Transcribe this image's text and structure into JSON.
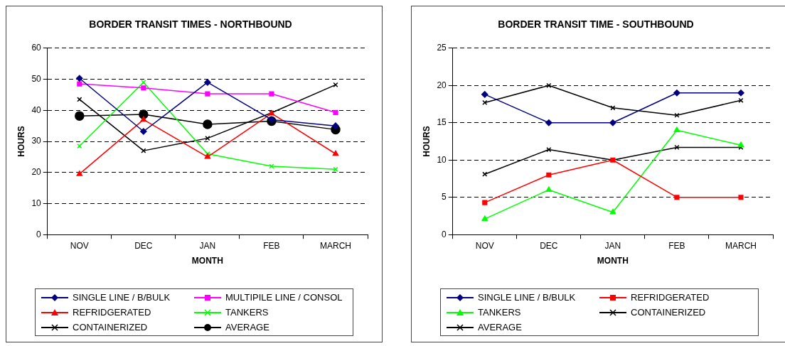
{
  "chart_data": [
    {
      "type": "line",
      "title": "BORDER TRANSIT TIMES - NORTHBOUND",
      "xlabel": "MONTH",
      "ylabel": "HOURS",
      "categories": [
        "NOV",
        "DEC",
        "JAN",
        "FEB",
        "MARCH"
      ],
      "ylim": [
        0,
        60
      ],
      "yticks": [
        0,
        10,
        20,
        30,
        40,
        50,
        60
      ],
      "grid": "y",
      "legend": "bottom",
      "series": [
        {
          "name": "SINGLE LINE / B/BULK",
          "color": "#000080",
          "marker": "diamond",
          "values": [
            50.3,
            33.2,
            49,
            37,
            35
          ]
        },
        {
          "name": "MULTIPILE LINE / CONSOL",
          "color": "#ff00ff",
          "marker": "square",
          "values": [
            48.5,
            47.2,
            45.3,
            45.3,
            39.3
          ]
        },
        {
          "name": "REFRIDGERATED",
          "color": "#ff0000",
          "marker": "triangle",
          "values": [
            19.5,
            37,
            25,
            39,
            26
          ]
        },
        {
          "name": "TANKERS",
          "color": "#00ff00",
          "marker": "cross",
          "values": [
            28.5,
            49,
            26,
            22,
            21
          ]
        },
        {
          "name": "CONTAINERIZED",
          "color": "#000000",
          "marker": "cross",
          "values": [
            43.5,
            27,
            31,
            39.2,
            48.2
          ]
        },
        {
          "name": "AVERAGE",
          "color": "#000000",
          "marker": "circle",
          "values": [
            38.2,
            38.7,
            35.5,
            36.5,
            33.8
          ]
        }
      ]
    },
    {
      "type": "line",
      "title": "BORDER TRANSIT TIME - SOUTHBOUND",
      "xlabel": "MONTH",
      "ylabel": "HOURS",
      "categories": [
        "NOV",
        "DEC",
        "JAN",
        "FEB",
        "MARCH"
      ],
      "ylim": [
        0,
        25
      ],
      "yticks": [
        0,
        5,
        10,
        15,
        20,
        25
      ],
      "grid": "y",
      "legend": "bottom",
      "series": [
        {
          "name": "SINGLE LINE / B/BULK",
          "color": "#000080",
          "marker": "diamond",
          "values": [
            18.8,
            15,
            15,
            19,
            19
          ]
        },
        {
          "name": "REFRIDGERATED",
          "color": "#ff0000",
          "marker": "square",
          "values": [
            4.3,
            8,
            10,
            5,
            5
          ]
        },
        {
          "name": "TANKERS",
          "color": "#00ff00",
          "marker": "triangle",
          "values": [
            2.1,
            6,
            3,
            14,
            12
          ]
        },
        {
          "name": "CONTAINERIZED",
          "color": "#000000",
          "marker": "cross",
          "values": [
            17.7,
            20,
            17,
            16,
            18
          ]
        },
        {
          "name": "AVERAGE",
          "color": "#000000",
          "marker": "cross",
          "values": [
            8.1,
            11.4,
            10,
            11.7,
            11.7
          ]
        }
      ]
    }
  ]
}
